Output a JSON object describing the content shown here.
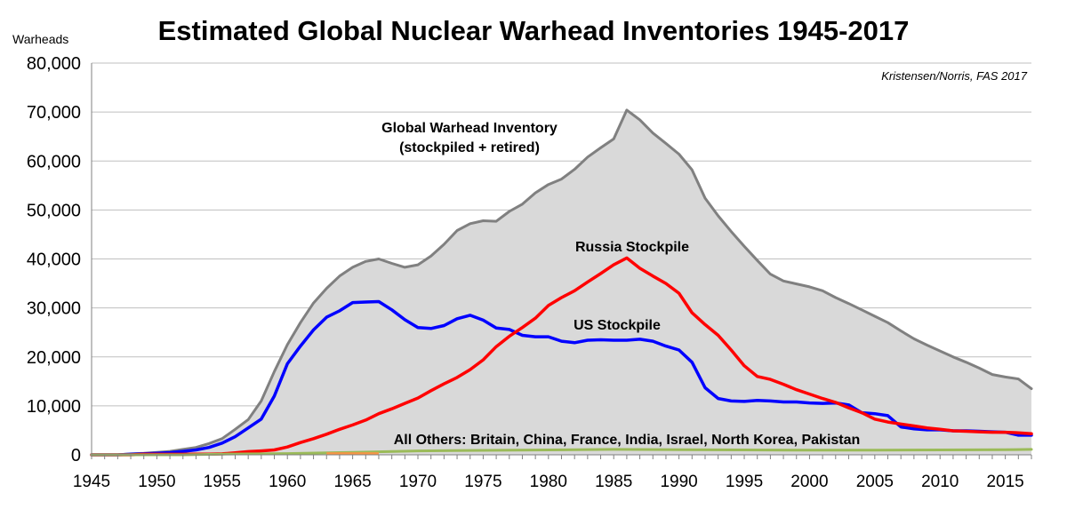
{
  "chart_data": {
    "type": "area",
    "title": "Estimated Global Nuclear Warhead Inventories 1945-2017",
    "ylabel": "Warheads",
    "source": "Kristensen/Norris, FAS 2017",
    "ylim": [
      0,
      80000
    ],
    "xlim": [
      1945,
      2017
    ],
    "y_ticks": [
      0,
      10000,
      20000,
      30000,
      40000,
      50000,
      60000,
      70000,
      80000
    ],
    "y_tick_labels": [
      "0",
      "10,000",
      "20,000",
      "30,000",
      "40,000",
      "50,000",
      "60,000",
      "70,000",
      "80,000"
    ],
    "x_ticks": [
      1945,
      1950,
      1955,
      1960,
      1965,
      1970,
      1975,
      1980,
      1985,
      1990,
      1995,
      2000,
      2005,
      2010,
      2015
    ],
    "x_tick_labels": [
      "1945",
      "1950",
      "1955",
      "1960",
      "1965",
      "1970",
      "1975",
      "1980",
      "1985",
      "1990",
      "1995",
      "2000",
      "2005",
      "2010",
      "2015"
    ],
    "grid": true,
    "annotations": {
      "global_line1": "Global Warhead Inventory",
      "global_line2": "(stockpiled + retired)",
      "russia": "Russia Stockpile",
      "us": "US Stockpile",
      "others": "All Others: Britain, China, France, India, Israel, North Korea, Pakistan"
    },
    "series": [
      {
        "name": "Global Warhead Inventory (stockpiled + retired)",
        "color": "#808080",
        "fill": "#d9d9d9",
        "points": [
          [
            1945,
            0
          ],
          [
            1946,
            0
          ],
          [
            1947,
            0
          ],
          [
            1948,
            200
          ],
          [
            1949,
            300
          ],
          [
            1950,
            500
          ],
          [
            1951,
            700
          ],
          [
            1952,
            1100
          ],
          [
            1953,
            1500
          ],
          [
            1954,
            2300
          ],
          [
            1955,
            3300
          ],
          [
            1956,
            5200
          ],
          [
            1957,
            7200
          ],
          [
            1958,
            11000
          ],
          [
            1959,
            17000
          ],
          [
            1960,
            22500
          ],
          [
            1961,
            27000
          ],
          [
            1962,
            31000
          ],
          [
            1963,
            34000
          ],
          [
            1964,
            36500
          ],
          [
            1965,
            38300
          ],
          [
            1966,
            39500
          ],
          [
            1967,
            40000
          ],
          [
            1968,
            39100
          ],
          [
            1969,
            38300
          ],
          [
            1970,
            38800
          ],
          [
            1971,
            40600
          ],
          [
            1972,
            43000
          ],
          [
            1973,
            45800
          ],
          [
            1974,
            47200
          ],
          [
            1975,
            47800
          ],
          [
            1976,
            47700
          ],
          [
            1977,
            49700
          ],
          [
            1978,
            51200
          ],
          [
            1979,
            53500
          ],
          [
            1980,
            55200
          ],
          [
            1981,
            56300
          ],
          [
            1982,
            58300
          ],
          [
            1983,
            60800
          ],
          [
            1984,
            62700
          ],
          [
            1985,
            64500
          ],
          [
            1986,
            70400
          ],
          [
            1987,
            68400
          ],
          [
            1988,
            65700
          ],
          [
            1989,
            63600
          ],
          [
            1990,
            61400
          ],
          [
            1991,
            58200
          ],
          [
            1992,
            52400
          ],
          [
            1993,
            48800
          ],
          [
            1994,
            45600
          ],
          [
            1995,
            42600
          ],
          [
            1996,
            39700
          ],
          [
            1997,
            36900
          ],
          [
            1998,
            35500
          ],
          [
            1999,
            34900
          ],
          [
            2000,
            34300
          ],
          [
            2001,
            33500
          ],
          [
            2002,
            32100
          ],
          [
            2003,
            30900
          ],
          [
            2004,
            29600
          ],
          [
            2005,
            28300
          ],
          [
            2006,
            27000
          ],
          [
            2007,
            25300
          ],
          [
            2008,
            23700
          ],
          [
            2009,
            22400
          ],
          [
            2010,
            21200
          ],
          [
            2011,
            20000
          ],
          [
            2012,
            18900
          ],
          [
            2013,
            17700
          ],
          [
            2014,
            16400
          ],
          [
            2015,
            15900
          ],
          [
            2016,
            15500
          ],
          [
            2017,
            13500
          ]
        ]
      },
      {
        "name": "US Stockpile",
        "color": "#0000ff",
        "points": [
          [
            1945,
            0
          ],
          [
            1946,
            0
          ],
          [
            1947,
            0
          ],
          [
            1948,
            100
          ],
          [
            1949,
            200
          ],
          [
            1950,
            300
          ],
          [
            1951,
            450
          ],
          [
            1952,
            700
          ],
          [
            1953,
            1000
          ],
          [
            1954,
            1500
          ],
          [
            1955,
            2400
          ],
          [
            1956,
            3700
          ],
          [
            1957,
            5500
          ],
          [
            1958,
            7300
          ],
          [
            1959,
            12000
          ],
          [
            1960,
            18600
          ],
          [
            1961,
            22200
          ],
          [
            1962,
            25500
          ],
          [
            1963,
            28100
          ],
          [
            1964,
            29400
          ],
          [
            1965,
            31100
          ],
          [
            1966,
            31200
          ],
          [
            1967,
            31300
          ],
          [
            1968,
            29600
          ],
          [
            1969,
            27600
          ],
          [
            1970,
            26000
          ],
          [
            1971,
            25800
          ],
          [
            1972,
            26400
          ],
          [
            1973,
            27800
          ],
          [
            1974,
            28500
          ],
          [
            1975,
            27500
          ],
          [
            1976,
            25900
          ],
          [
            1977,
            25600
          ],
          [
            1978,
            24400
          ],
          [
            1979,
            24100
          ],
          [
            1980,
            24100
          ],
          [
            1981,
            23200
          ],
          [
            1982,
            22900
          ],
          [
            1983,
            23400
          ],
          [
            1984,
            23500
          ],
          [
            1985,
            23400
          ],
          [
            1986,
            23400
          ],
          [
            1987,
            23600
          ],
          [
            1988,
            23200
          ],
          [
            1989,
            22200
          ],
          [
            1990,
            21400
          ],
          [
            1991,
            18900
          ],
          [
            1992,
            13700
          ],
          [
            1993,
            11500
          ],
          [
            1994,
            11000
          ],
          [
            1995,
            10900
          ],
          [
            1996,
            11100
          ],
          [
            1997,
            11000
          ],
          [
            1998,
            10800
          ],
          [
            1999,
            10800
          ],
          [
            2000,
            10600
          ],
          [
            2001,
            10500
          ],
          [
            2002,
            10600
          ],
          [
            2003,
            10200
          ],
          [
            2004,
            8600
          ],
          [
            2005,
            8400
          ],
          [
            2006,
            8000
          ],
          [
            2007,
            5700
          ],
          [
            2008,
            5300
          ],
          [
            2009,
            5100
          ],
          [
            2010,
            5100
          ],
          [
            2011,
            4900
          ],
          [
            2012,
            4900
          ],
          [
            2013,
            4800
          ],
          [
            2014,
            4700
          ],
          [
            2015,
            4600
          ],
          [
            2016,
            4000
          ],
          [
            2017,
            4000
          ]
        ]
      },
      {
        "name": "Russia Stockpile",
        "color": "#ff0000",
        "points": [
          [
            1945,
            0
          ],
          [
            1948,
            0
          ],
          [
            1949,
            100
          ],
          [
            1950,
            100
          ],
          [
            1951,
            100
          ],
          [
            1952,
            100
          ],
          [
            1953,
            120
          ],
          [
            1954,
            150
          ],
          [
            1955,
            200
          ],
          [
            1956,
            400
          ],
          [
            1957,
            650
          ],
          [
            1958,
            800
          ],
          [
            1959,
            1000
          ],
          [
            1960,
            1600
          ],
          [
            1961,
            2500
          ],
          [
            1962,
            3300
          ],
          [
            1963,
            4200
          ],
          [
            1964,
            5200
          ],
          [
            1965,
            6100
          ],
          [
            1966,
            7100
          ],
          [
            1967,
            8400
          ],
          [
            1968,
            9400
          ],
          [
            1969,
            10500
          ],
          [
            1970,
            11600
          ],
          [
            1971,
            13100
          ],
          [
            1972,
            14500
          ],
          [
            1973,
            15800
          ],
          [
            1974,
            17400
          ],
          [
            1975,
            19400
          ],
          [
            1976,
            22100
          ],
          [
            1977,
            24200
          ],
          [
            1978,
            26000
          ],
          [
            1979,
            27900
          ],
          [
            1980,
            30500
          ],
          [
            1981,
            32100
          ],
          [
            1982,
            33500
          ],
          [
            1983,
            35300
          ],
          [
            1984,
            37000
          ],
          [
            1985,
            38800
          ],
          [
            1986,
            40200
          ],
          [
            1987,
            38100
          ],
          [
            1988,
            36500
          ],
          [
            1989,
            35000
          ],
          [
            1990,
            33000
          ],
          [
            1991,
            29000
          ],
          [
            1992,
            26600
          ],
          [
            1993,
            24400
          ],
          [
            1994,
            21400
          ],
          [
            1995,
            18200
          ],
          [
            1996,
            16000
          ],
          [
            1997,
            15400
          ],
          [
            1998,
            14400
          ],
          [
            1999,
            13300
          ],
          [
            2000,
            12400
          ],
          [
            2001,
            11500
          ],
          [
            2002,
            10700
          ],
          [
            2003,
            9600
          ],
          [
            2004,
            8600
          ],
          [
            2005,
            7300
          ],
          [
            2006,
            6700
          ],
          [
            2007,
            6300
          ],
          [
            2008,
            5900
          ],
          [
            2009,
            5500
          ],
          [
            2010,
            5200
          ],
          [
            2011,
            4900
          ],
          [
            2012,
            4800
          ],
          [
            2013,
            4700
          ],
          [
            2014,
            4600
          ],
          [
            2015,
            4600
          ],
          [
            2016,
            4500
          ],
          [
            2017,
            4300
          ]
        ]
      },
      {
        "name": "All Others: Britain, China, France, India, Israel, North Korea, Pakistan",
        "color": "#9bbb59",
        "points": [
          [
            1945,
            0
          ],
          [
            1952,
            0
          ],
          [
            1953,
            50
          ],
          [
            1955,
            150
          ],
          [
            1960,
            250
          ],
          [
            1965,
            500
          ],
          [
            1970,
            800
          ],
          [
            1975,
            900
          ],
          [
            1980,
            1000
          ],
          [
            1985,
            1100
          ],
          [
            1990,
            1050
          ],
          [
            1995,
            1000
          ],
          [
            2000,
            950
          ],
          [
            2005,
            950
          ],
          [
            2010,
            1000
          ],
          [
            2015,
            1050
          ],
          [
            2017,
            1100
          ]
        ]
      }
    ]
  }
}
